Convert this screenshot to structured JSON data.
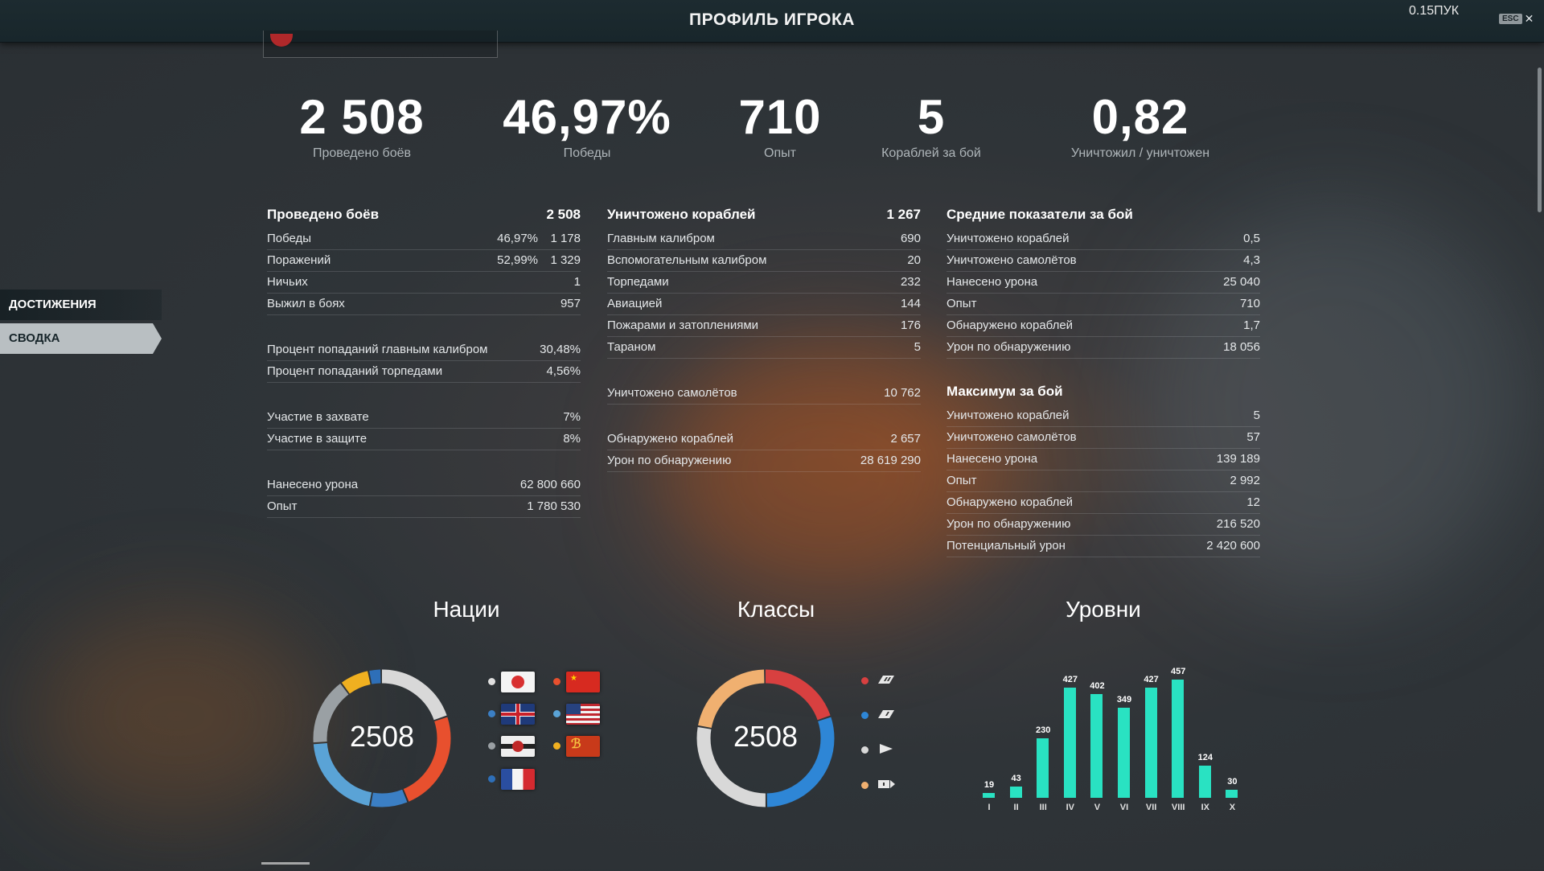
{
  "header": {
    "title": "ПРОФИЛЬ ИГРОКА",
    "fps": "0.15ПУК",
    "esc": "ESC",
    "close": "✕"
  },
  "summary": [
    {
      "value": "2 508",
      "label": "Проведено боёв"
    },
    {
      "value": "46,97%",
      "label": "Победы"
    },
    {
      "value": "710",
      "label": "Опыт"
    },
    {
      "value": "5",
      "label": "Кораблей за бой"
    },
    {
      "value": "0,82",
      "label": "Уничтожил / уничтожен"
    }
  ],
  "sidebar": {
    "achievements": "ДОСТИЖЕНИЯ",
    "summary": "СВОДКА"
  },
  "col1": {
    "head": {
      "label": "Проведено боёв",
      "value": "2 508"
    },
    "rows1": [
      {
        "label": "Победы",
        "pct": "46,97%",
        "value": "1 178"
      },
      {
        "label": "Поражений",
        "pct": "52,99%",
        "value": "1 329"
      },
      {
        "label": "Ничьих",
        "pct": "",
        "value": "1"
      },
      {
        "label": "Выжил в боях",
        "pct": "",
        "value": "957"
      }
    ],
    "rows2": [
      {
        "label": "Процент попаданий главным калибром",
        "value": "30,48%"
      },
      {
        "label": "Процент попаданий торпедами",
        "value": "4,56%"
      }
    ],
    "rows3": [
      {
        "label": "Участие в захвате",
        "value": "7%"
      },
      {
        "label": "Участие в защите",
        "value": "8%"
      }
    ],
    "rows4": [
      {
        "label": "Нанесено урона",
        "value": "62 800 660"
      },
      {
        "label": "Опыт",
        "value": "1 780 530"
      }
    ]
  },
  "col2": {
    "head": {
      "label": "Уничтожено кораблей",
      "value": "1 267"
    },
    "rows1": [
      {
        "label": "Главным калибром",
        "value": "690"
      },
      {
        "label": "Вспомогательным калибром",
        "value": "20"
      },
      {
        "label": "Торпедами",
        "value": "232"
      },
      {
        "label": "Авиацией",
        "value": "144"
      },
      {
        "label": "Пожарами и затоплениями",
        "value": "176"
      },
      {
        "label": "Тараном",
        "value": "5"
      }
    ],
    "rows2": [
      {
        "label": "Уничтожено самолётов",
        "value": "10 762"
      }
    ],
    "rows3": [
      {
        "label": "Обнаружено кораблей",
        "value": "2 657"
      },
      {
        "label": "Урон по обнаружению",
        "value": "28 619 290"
      }
    ]
  },
  "col3": {
    "head1": "Средние показатели за бой",
    "avg": [
      {
        "label": "Уничтожено кораблей",
        "value": "0,5"
      },
      {
        "label": "Уничтожено самолётов",
        "value": "4,3"
      },
      {
        "label": "Нанесено урона",
        "value": "25 040"
      },
      {
        "label": "Опыт",
        "value": "710"
      },
      {
        "label": "Обнаружено кораблей",
        "value": "1,7"
      },
      {
        "label": "Урон по обнаружению",
        "value": "18 056"
      }
    ],
    "head2": "Максимум за бой",
    "max": [
      {
        "label": "Уничтожено кораблей",
        "value": "5"
      },
      {
        "label": "Уничтожено самолётов",
        "value": "57"
      },
      {
        "label": "Нанесено урона",
        "value": "139 189"
      },
      {
        "label": "Опыт",
        "value": "2 992"
      },
      {
        "label": "Обнаружено кораблей",
        "value": "12"
      },
      {
        "label": "Урон по обнаружению",
        "value": "216 520"
      },
      {
        "label": "Потенциальный урон",
        "value": "2 420 600"
      }
    ]
  },
  "charts": {
    "nations_title": "Нации",
    "classes_title": "Классы",
    "tiers_title": "Уровни",
    "nations_total": "2508",
    "classes_total": "2508",
    "nations_legend": [
      {
        "name": "japan-flag",
        "color": "#e0e0e0"
      },
      {
        "name": "china-flag",
        "color": "#e8502e"
      },
      {
        "name": "uk-flag",
        "color": "#3b7fc4"
      },
      {
        "name": "usa-flag",
        "color": "#5aa3d6"
      },
      {
        "name": "germany-flag",
        "color": "#9aa0a4"
      },
      {
        "name": "pan-asia-flag",
        "color": "#f0b020"
      },
      {
        "name": "france-flag",
        "color": "#2e6fb8"
      }
    ],
    "classes_legend": [
      {
        "name": "aircraft-carrier-icon",
        "color": "#d84040"
      },
      {
        "name": "battleship-icon",
        "color": "#2e86d6"
      },
      {
        "name": "cruiser-icon",
        "color": "#d8d8d8"
      },
      {
        "name": "destroyer-icon",
        "color": "#f0b070"
      }
    ]
  },
  "chart_data": [
    {
      "type": "pie",
      "title": "Нации",
      "center_label": "2508",
      "slices": [
        {
          "name": "japan",
          "color": "#d8d8d8",
          "share": 0.2
        },
        {
          "name": "china",
          "color": "#e8502e",
          "share": 0.24
        },
        {
          "name": "uk",
          "color": "#3b7fc4",
          "share": 0.09
        },
        {
          "name": "usa",
          "color": "#5aa3d6",
          "share": 0.21
        },
        {
          "name": "germany",
          "color": "#9aa0a4",
          "share": 0.16
        },
        {
          "name": "pan-asia",
          "color": "#f0b020",
          "share": 0.07
        },
        {
          "name": "france",
          "color": "#2e6fb8",
          "share": 0.03
        }
      ]
    },
    {
      "type": "pie",
      "title": "Классы",
      "center_label": "2508",
      "slices": [
        {
          "name": "aircraft-carrier",
          "color": "#d84040",
          "share": 0.2
        },
        {
          "name": "battleship",
          "color": "#2e86d6",
          "share": 0.3
        },
        {
          "name": "cruiser",
          "color": "#d8d8d8",
          "share": 0.28
        },
        {
          "name": "destroyer",
          "color": "#f0b070",
          "share": 0.22
        }
      ]
    },
    {
      "type": "bar",
      "title": "Уровни",
      "categories": [
        "I",
        "II",
        "III",
        "IV",
        "V",
        "VI",
        "VII",
        "VIII",
        "IX",
        "X"
      ],
      "values": [
        19,
        43,
        230,
        427,
        402,
        349,
        427,
        457,
        124,
        30
      ],
      "ylim": [
        0,
        457
      ]
    }
  ]
}
